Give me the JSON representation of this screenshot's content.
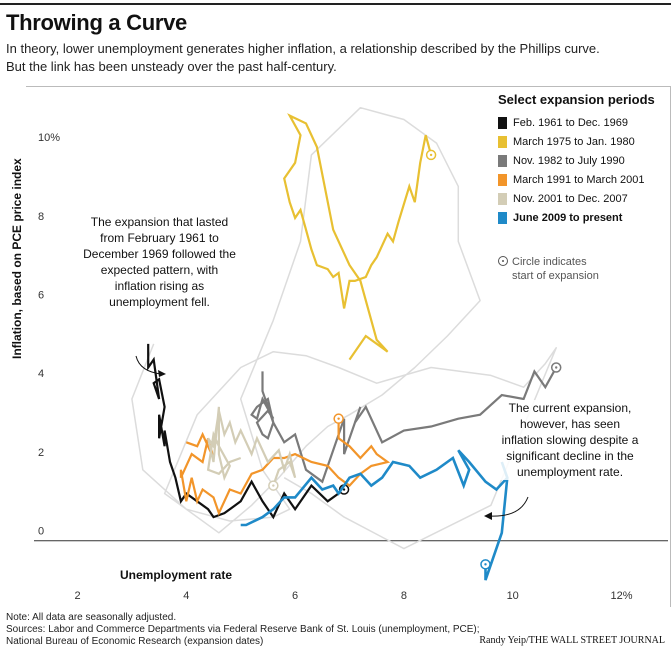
{
  "header": {
    "title": "Throwing a Curve",
    "subtitle_line1": "In theory, lower unemployment generates higher inflation, a relationship described by the Phillips curve.",
    "subtitle_line2": "But the link has been unsteady over the past half-century."
  },
  "annotations": {
    "left": "The expansion that lasted from February 1961 to December 1969 followed the expected pattern, with inflation rising as unemployment fell.",
    "right": "The current expansion, however, has seen inflation slowing despite a significant decline in the unemployment rate.",
    "circle_note_line1": "Circle indicates",
    "circle_note_line2": "start of expansion"
  },
  "legend": {
    "title": "Select expansion periods"
  },
  "footer": {
    "note": "Note: All data are seasonally adjusted.",
    "sources1": "Sources: Labor and Commerce Departments via Federal Reserve Bank of St. Louis (unemployment, PCE);",
    "sources2": "National Bureau of Economic Research (expansion dates)",
    "credit": "Randy Yeip/THE WALL STREET JOURNAL"
  },
  "chart_data": {
    "type": "line",
    "title": "Throwing a Curve",
    "xlabel": "Unemployment rate",
    "ylabel": "Inflation, based on PCE price index",
    "xlim": [
      1.2,
      12.8
    ],
    "ylim": [
      -1.1,
      11.5
    ],
    "x_ticks": [
      "2",
      "4",
      "6",
      "8",
      "10",
      "12%"
    ],
    "x_tick_values": [
      2,
      4,
      6,
      8,
      10,
      12
    ],
    "y_ticks": [
      "0",
      "2",
      "4",
      "6",
      "8",
      "10%"
    ],
    "y_tick_values": [
      0,
      2,
      4,
      6,
      8,
      10
    ],
    "grid": false,
    "legend_position": "top-right",
    "background_series": {
      "color": "#dcdcdc",
      "x": [
        3.4,
        3.0,
        3.2,
        4.0,
        4.8,
        5.6,
        5.9,
        5.4,
        5.0,
        5.6,
        6.1,
        6.3,
        7.2,
        8.0,
        8.6,
        9.0,
        9.0,
        9.4,
        8.8,
        8.2,
        7.6,
        7.0,
        6.6,
        6.2,
        5.7,
        5.2,
        4.6,
        3.6,
        4.2,
        5.0,
        5.6,
        6.2,
        6.8,
        7.5,
        8.5,
        9.6,
        10.2,
        10.6,
        10.8,
        9.6,
        8.0,
        6.9,
        6.3,
        5.8
      ],
      "y": [
        5.0,
        3.6,
        1.8,
        0.8,
        0.5,
        0.6,
        0.8,
        1.8,
        3.6,
        5.6,
        7.6,
        9.8,
        11.0,
        10.7,
        10.1,
        9.0,
        7.6,
        6.1,
        5.2,
        4.4,
        3.7,
        3.2,
        2.9,
        2.4,
        1.6,
        0.9,
        0.2,
        1.2,
        3.2,
        4.4,
        4.8,
        4.7,
        4.4,
        4.0,
        4.4,
        4.2,
        3.9,
        4.5,
        4.9,
        0.9,
        -0.2,
        0.6,
        1.2,
        1.6
      ]
    },
    "series": [
      {
        "name": "Feb. 1961 to Dec. 1969",
        "color": "#111111",
        "start": [
          6.9,
          1.3
        ],
        "x": [
          6.9,
          6.6,
          6.3,
          6.0,
          5.8,
          5.6,
          5.4,
          5.2,
          5.0,
          4.9,
          4.7,
          4.5,
          4.4,
          4.2,
          4.0,
          3.9,
          3.8,
          3.7,
          3.6,
          3.6,
          3.5,
          3.5,
          3.6,
          3.5,
          3.4,
          3.5,
          3.4,
          3.3,
          3.3
        ],
        "y": [
          1.3,
          1.0,
          1.4,
          0.8,
          1.2,
          0.6,
          1.0,
          1.5,
          1.0,
          0.9,
          0.7,
          0.6,
          0.8,
          1.0,
          1.2,
          1.0,
          1.6,
          2.0,
          2.8,
          2.4,
          3.2,
          2.6,
          3.4,
          4.1,
          4.0,
          3.6,
          4.6,
          4.4,
          5.0
        ]
      },
      {
        "name": "March 1975 to Jan. 1980",
        "color": "#e8c032",
        "start": [
          8.5,
          9.8
        ],
        "x": [
          8.5,
          8.4,
          8.3,
          8.2,
          8.1,
          7.9,
          7.8,
          7.7,
          7.5,
          7.4,
          7.3,
          7.1,
          7.0,
          6.9,
          6.8,
          6.7,
          6.6,
          6.4,
          6.3,
          6.2,
          6.1,
          6.0,
          5.9,
          5.8,
          6.0,
          6.1,
          5.9,
          6.2,
          6.4,
          6.7,
          7.0,
          7.2,
          7.5,
          7.7,
          7.3,
          7.0
        ],
        "y": [
          9.8,
          10.3,
          9.6,
          8.6,
          9.0,
          8.1,
          7.6,
          7.8,
          7.2,
          7.0,
          6.7,
          6.6,
          6.6,
          5.9,
          6.8,
          6.7,
          6.9,
          7.0,
          7.4,
          7.9,
          8.4,
          8.2,
          8.6,
          9.2,
          9.6,
          10.3,
          10.8,
          10.6,
          10.0,
          7.9,
          7.0,
          6.6,
          5.1,
          4.8,
          5.2,
          4.6
        ]
      },
      {
        "name": "Nov. 1982 to July 1990",
        "color": "#7a7a7a",
        "start": [
          10.8,
          4.4
        ],
        "x": [
          10.8,
          10.6,
          10.4,
          10.2,
          9.8,
          9.4,
          9.0,
          8.5,
          8.0,
          7.6,
          7.3,
          7.1,
          7.2,
          7.0,
          6.9,
          6.9,
          6.5,
          6.2,
          6.0,
          5.8,
          5.6,
          5.5,
          5.4,
          5.3,
          5.5,
          5.6,
          5.4,
          5.3,
          5.2,
          5.3,
          5.5,
          5.6,
          5.4,
          5.4
        ],
        "y": [
          4.4,
          3.9,
          4.3,
          3.6,
          3.7,
          3.2,
          3.1,
          2.9,
          2.8,
          2.5,
          3.4,
          3.0,
          3.4,
          2.6,
          2.2,
          3.1,
          1.5,
          1.8,
          2.7,
          2.5,
          3.0,
          2.6,
          2.7,
          3.0,
          3.3,
          3.1,
          3.6,
          3.1,
          3.2,
          3.4,
          3.6,
          3.0,
          3.8,
          4.3
        ]
      },
      {
        "name": "March 1991 to March 2001",
        "color": "#f2952a",
        "start": [
          6.8,
          3.1
        ],
        "x": [
          6.8,
          6.8,
          7.0,
          7.2,
          7.4,
          7.5,
          7.7,
          7.4,
          7.2,
          7.0,
          6.8,
          6.6,
          6.3,
          6.0,
          5.8,
          5.6,
          5.4,
          5.2,
          5.0,
          4.8,
          4.6,
          4.5,
          4.3,
          4.2,
          4.1,
          4.0,
          3.9,
          3.9,
          4.1,
          4.3,
          4.4,
          4.5,
          4.3,
          4.2,
          4.0
        ],
        "y": [
          3.1,
          2.6,
          2.4,
          2.1,
          2.4,
          2.2,
          2.0,
          1.9,
          1.7,
          1.4,
          1.6,
          1.9,
          2.0,
          2.2,
          2.1,
          2.1,
          1.8,
          1.7,
          1.2,
          1.3,
          0.7,
          1.1,
          1.3,
          1.0,
          1.6,
          1.0,
          1.8,
          1.6,
          2.2,
          2.0,
          2.6,
          2.1,
          2.7,
          2.4,
          2.5
        ]
      },
      {
        "name": "Nov. 2001 to Dec. 2007",
        "color": "#d3cdb6",
        "start": [
          5.6,
          1.4
        ],
        "x": [
          5.6,
          5.7,
          5.9,
          6.0,
          5.9,
          5.8,
          5.7,
          5.5,
          5.3,
          5.2,
          5.0,
          4.9,
          4.8,
          4.7,
          4.6,
          4.5,
          4.4,
          4.5,
          4.6,
          4.6,
          4.7,
          4.8,
          4.6,
          4.5,
          4.4,
          4.6,
          4.8,
          5.0
        ],
        "y": [
          1.4,
          1.8,
          2.0,
          1.6,
          2.2,
          1.8,
          2.3,
          2.0,
          2.6,
          2.2,
          2.8,
          2.5,
          3.0,
          2.7,
          3.3,
          2.4,
          2.6,
          2.0,
          3.4,
          2.2,
          1.6,
          1.9,
          2.4,
          2.7,
          1.8,
          1.7,
          2.0,
          2.1
        ]
      },
      {
        "name": "June 2009 to present",
        "color": "#1f8ac8",
        "bold": true,
        "start": [
          9.5,
          -0.6
        ],
        "x": [
          9.5,
          9.5,
          9.8,
          9.9,
          9.8,
          9.9,
          9.7,
          9.5,
          9.2,
          9.0,
          9.2,
          9.1,
          8.9,
          8.6,
          8.3,
          8.1,
          7.8,
          7.6,
          7.4,
          7.2,
          7.0,
          6.8,
          6.7,
          6.5,
          6.3,
          6.0,
          5.8,
          5.6,
          5.4,
          5.1,
          5.0
        ],
        "y": [
          -0.6,
          -1.0,
          0.2,
          1.6,
          2.0,
          1.6,
          1.3,
          1.5,
          2.0,
          2.3,
          1.8,
          1.4,
          2.1,
          1.8,
          1.6,
          1.9,
          2.0,
          1.6,
          1.4,
          1.7,
          1.6,
          1.2,
          1.4,
          1.3,
          1.6,
          1.1,
          1.1,
          0.8,
          0.6,
          0.4,
          0.4
        ]
      }
    ]
  }
}
